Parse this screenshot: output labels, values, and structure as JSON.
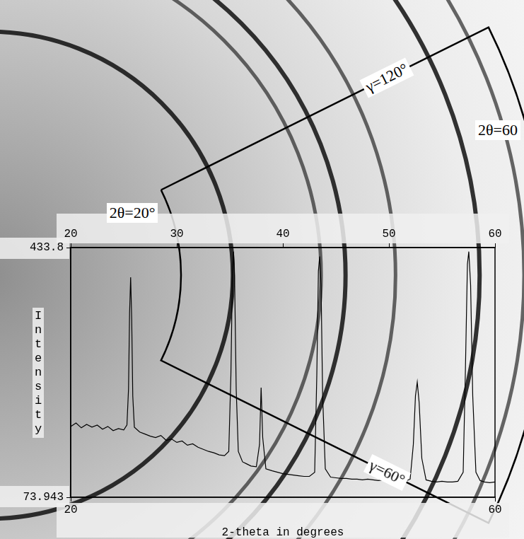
{
  "chart_data": {
    "type": "line",
    "x": [
      20.0,
      20.5,
      21.0,
      21.5,
      22.0,
      22.5,
      23.0,
      23.5,
      24.0,
      24.5,
      25.0,
      25.3,
      25.45,
      25.55,
      25.65,
      25.75,
      25.85,
      26.0,
      26.5,
      27.0,
      27.5,
      28.0,
      28.5,
      29.0,
      29.5,
      30.0,
      30.5,
      31.0,
      31.5,
      32.0,
      32.5,
      33.0,
      33.5,
      34.0,
      34.5,
      34.9,
      35.1,
      35.25,
      35.35,
      35.45,
      35.6,
      35.8,
      36.2,
      36.6,
      37.0,
      37.5,
      37.8,
      37.95,
      38.1,
      38.4,
      39.0,
      39.5,
      40.0,
      40.5,
      41.0,
      41.5,
      42.0,
      42.5,
      43.0,
      43.2,
      43.35,
      43.47,
      43.6,
      43.75,
      44.0,
      44.5,
      45.0,
      45.5,
      46.0,
      46.5,
      47.0,
      47.5,
      48.0,
      48.5,
      49.0,
      49.5,
      50.0,
      50.5,
      51.0,
      51.5,
      52.0,
      52.3,
      52.5,
      52.67,
      52.85,
      53.1,
      53.5,
      54.0,
      54.5,
      55.0,
      55.5,
      56.0,
      56.5,
      57.0,
      57.2,
      57.4,
      57.53,
      57.7,
      57.9,
      58.2,
      58.6,
      59.0,
      59.5,
      60.0
    ],
    "values": [
      176,
      181,
      174,
      179,
      175,
      178,
      172,
      176,
      170,
      173,
      171,
      178,
      230,
      340,
      391,
      330,
      220,
      175,
      168,
      165,
      162,
      160,
      163,
      156,
      158,
      153,
      155,
      149,
      151,
      146,
      143,
      140,
      138,
      135,
      134,
      140,
      250,
      400,
      428,
      390,
      230,
      140,
      125,
      122,
      119,
      118,
      150,
      232,
      160,
      115,
      112,
      110,
      108,
      107,
      106,
      105,
      104,
      104,
      110,
      250,
      400,
      421,
      380,
      220,
      115,
      103,
      102,
      101,
      101,
      100,
      100,
      99,
      100,
      99,
      98,
      99,
      98,
      97,
      98,
      97,
      100,
      150,
      220,
      240,
      210,
      130,
      99,
      97,
      96,
      97,
      96,
      96,
      97,
      110,
      250,
      410,
      428,
      380,
      220,
      110,
      98,
      96,
      95,
      96
    ],
    "color": "#000000",
    "xlim": [
      20,
      60
    ],
    "xticks": [
      20,
      60
    ],
    "x2ticks": [
      20,
      30,
      40,
      50,
      60
    ],
    "ylim": [
      73.943,
      433.8
    ],
    "yticks": [
      73.943,
      433.8
    ],
    "x_label": "2-theta in degrees",
    "y_label": "Intensity",
    "grid": false
  },
  "image": {
    "rings": [
      25.67,
      35.33,
      38.0,
      43.47,
      52.67,
      57.53
    ],
    "sector": {
      "two_theta": [
        20,
        60
      ],
      "gamma": [
        60,
        120
      ],
      "two_theta_labels": [
        "2θ=20°",
        "2θ=60"
      ],
      "gamma_labels": [
        "γ=60°",
        "γ=120°"
      ]
    }
  }
}
